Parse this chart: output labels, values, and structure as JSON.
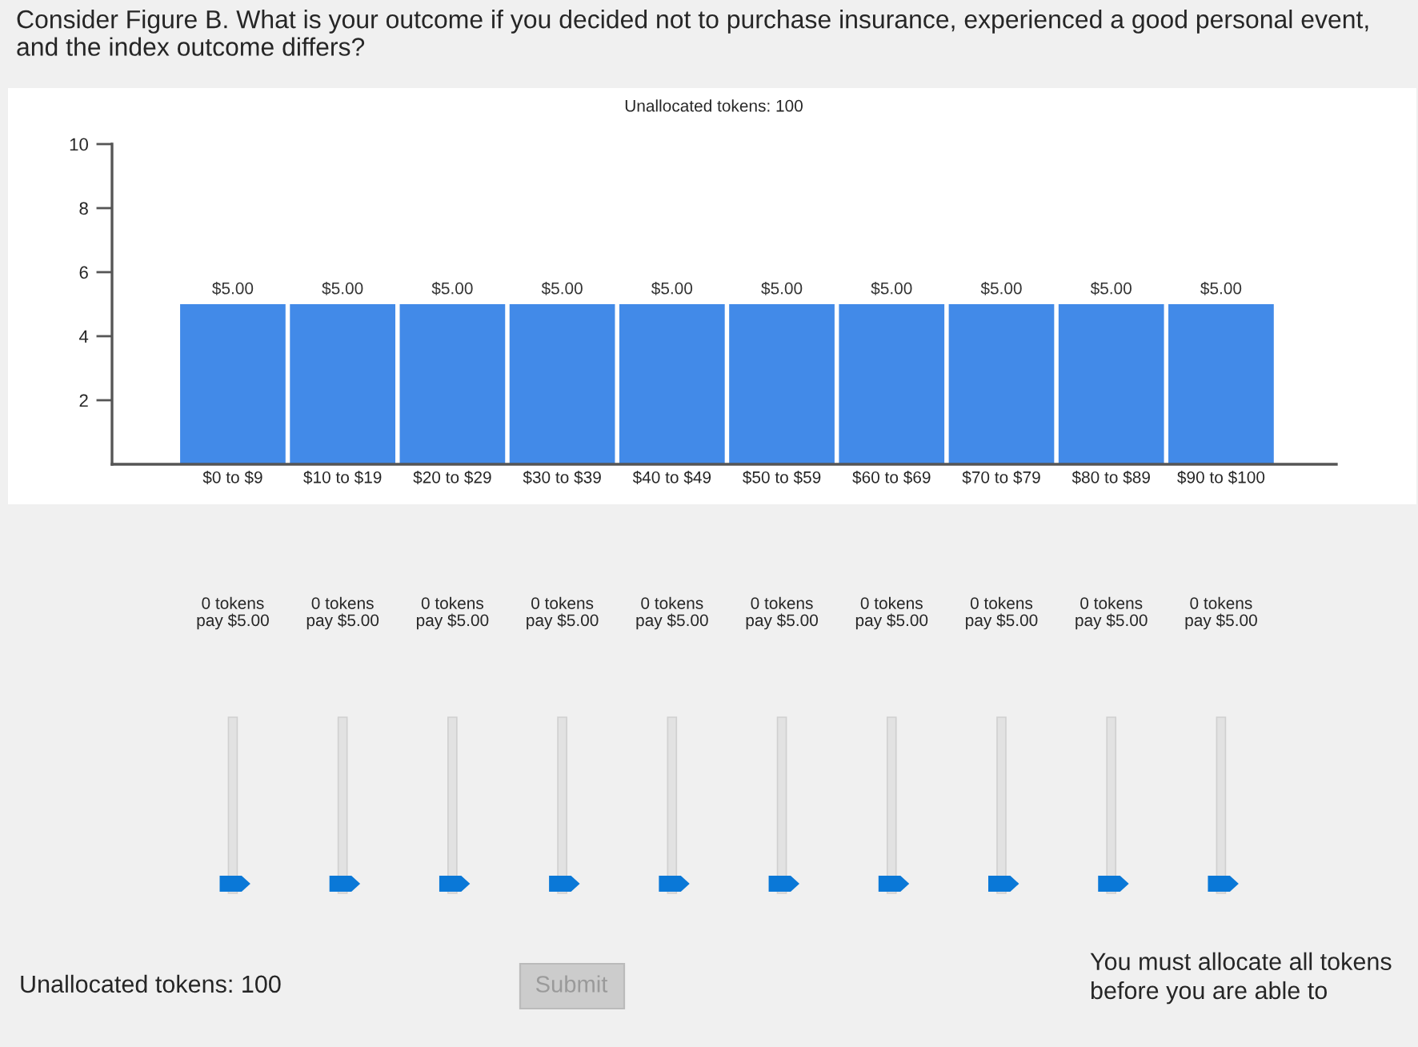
{
  "chart_data": {
    "type": "bar",
    "title": "Consider Figure B. What is your outcome if you decided not to purchase insurance, experienced a good personal event, and the index outcome differs?",
    "subtitle": "Unallocated tokens: 100",
    "categories": [
      "$0 to $9",
      "$10 to $19",
      "$20 to $29",
      "$30 to $39",
      "$40 to $49",
      "$50 to $59",
      "$60 to $69",
      "$70 to $79",
      "$80 to $89",
      "$90 to $100"
    ],
    "values": [
      5,
      5,
      5,
      5,
      5,
      5,
      5,
      5,
      5,
      5
    ],
    "value_labels": [
      "$5.00",
      "$5.00",
      "$5.00",
      "$5.00",
      "$5.00",
      "$5.00",
      "$5.00",
      "$5.00",
      "$5.00",
      "$5.00"
    ],
    "color": "#428ae8",
    "ylim": [
      0,
      10
    ],
    "yticks": [
      2,
      4,
      6,
      8,
      10
    ],
    "grid": false,
    "annotations": [
      "0 tokens\npay $5.00",
      "0 tokens\npay $5.00",
      "0 tokens\npay $5.00",
      "0 tokens\npay $5.00",
      "0 tokens\npay $5.00",
      "0 tokens\npay $5.00",
      "0 tokens\npay $5.00",
      "0 tokens\npay $5.00",
      "0 tokens\npay $5.00",
      "0 tokens\npay $5.00",
      "Unallocated tokens: 100",
      "Submit",
      "You must allocate all tokens\nbefore you are able to"
    ]
  }
}
